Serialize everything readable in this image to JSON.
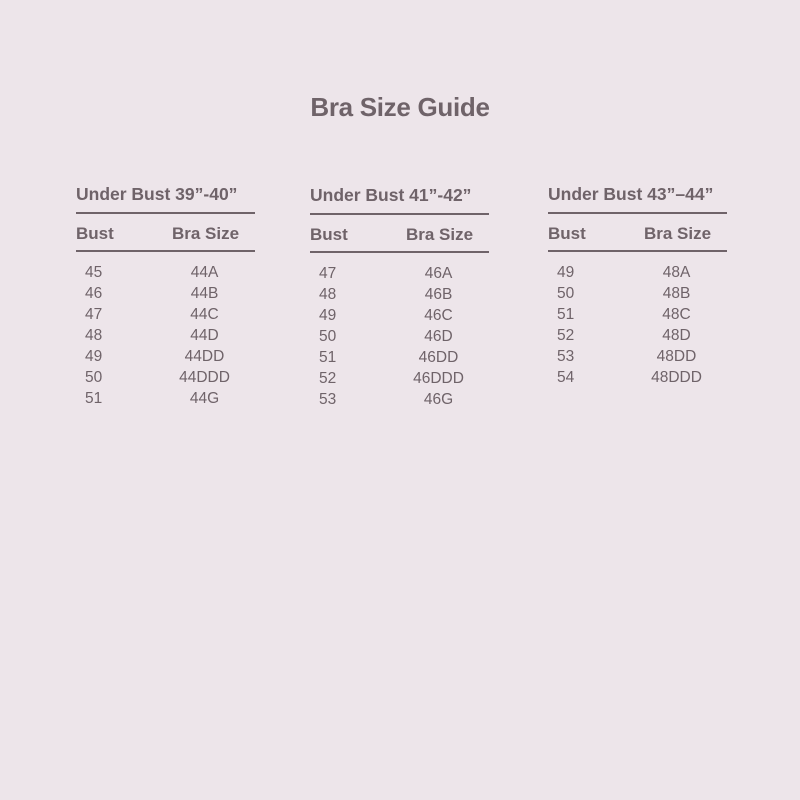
{
  "title": "Bra Size Guide",
  "tables": [
    {
      "heading": "Under Bust 39”-40”",
      "col_bust": "Bust",
      "col_size": "Bra Size",
      "rows": [
        [
          "45",
          "44A"
        ],
        [
          "46",
          "44B"
        ],
        [
          "47",
          "44C"
        ],
        [
          "48",
          "44D"
        ],
        [
          "49",
          "44DD"
        ],
        [
          "50",
          "44DDD"
        ],
        [
          "51",
          "44G"
        ]
      ]
    },
    {
      "heading": "Under Bust 41”-42”",
      "col_bust": "Bust",
      "col_size": "Bra Size",
      "rows": [
        [
          "47",
          "46A"
        ],
        [
          "48",
          "46B"
        ],
        [
          "49",
          "46C"
        ],
        [
          "50",
          "46D"
        ],
        [
          "51",
          "46DD"
        ],
        [
          "52",
          "46DDD"
        ],
        [
          "53",
          "46G"
        ]
      ]
    },
    {
      "heading": "Under Bust 43”–44”",
      "col_bust": "Bust",
      "col_size": "Bra Size",
      "rows": [
        [
          "49",
          "48A"
        ],
        [
          "50",
          "48B"
        ],
        [
          "51",
          "48C"
        ],
        [
          "52",
          "48D"
        ],
        [
          "53",
          "48DD"
        ],
        [
          "54",
          "48DDD"
        ]
      ]
    }
  ]
}
